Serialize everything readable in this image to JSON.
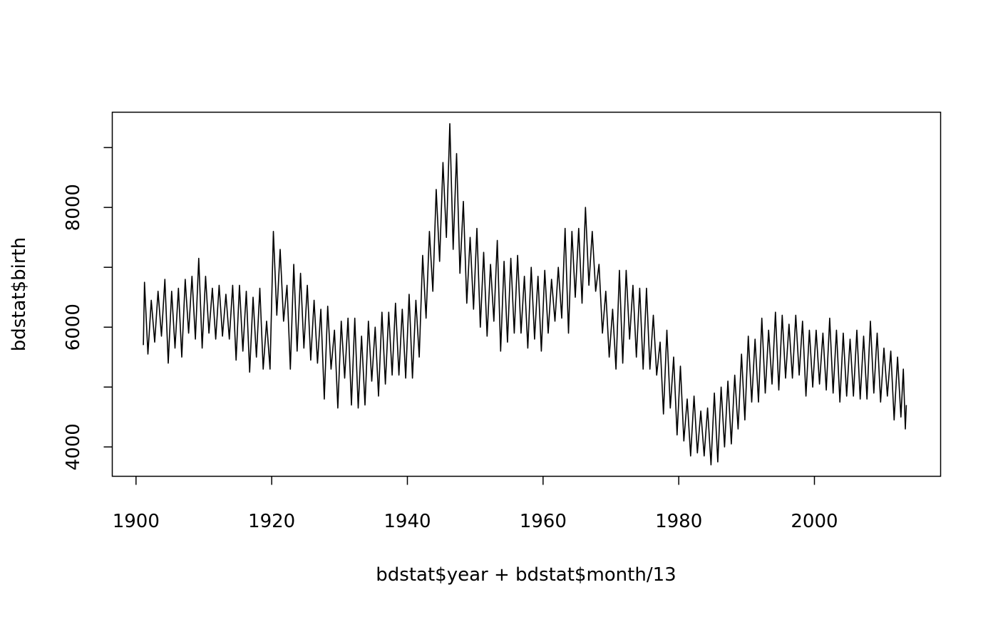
{
  "chart_data": {
    "type": "line",
    "title": "",
    "xlabel": "bdstat$year + bdstat$month/13",
    "ylabel": "bdstat$birth",
    "xlim": [
      1896.5,
      2018.6
    ],
    "ylim": [
      3510,
      9590
    ],
    "x_ticks": [
      1900,
      1920,
      1940,
      1960,
      1980,
      2000
    ],
    "x_tick_labels": [
      "1900",
      "1920",
      "1940",
      "1960",
      "1980",
      "2000"
    ],
    "y_ticks": [
      4000,
      5000,
      6000,
      7000,
      8000,
      9000
    ],
    "y_tick_labels": [
      "4000",
      "",
      "6000",
      "",
      "8000",
      ""
    ],
    "grid": false,
    "line_color": "#000000",
    "series": [
      {
        "points": [
          [
            1901.08,
            5700
          ],
          [
            1901.25,
            6750
          ],
          [
            1901.75,
            5550
          ],
          [
            1902.25,
            6450
          ],
          [
            1902.75,
            5750
          ],
          [
            1903.25,
            6600
          ],
          [
            1903.75,
            5850
          ],
          [
            1904.25,
            6800
          ],
          [
            1904.75,
            5400
          ],
          [
            1905.25,
            6600
          ],
          [
            1905.75,
            5650
          ],
          [
            1906.25,
            6650
          ],
          [
            1906.75,
            5500
          ],
          [
            1907.25,
            6800
          ],
          [
            1907.75,
            5900
          ],
          [
            1908.25,
            6850
          ],
          [
            1908.75,
            5800
          ],
          [
            1909.25,
            7150
          ],
          [
            1909.75,
            5650
          ],
          [
            1910.25,
            6850
          ],
          [
            1910.75,
            5900
          ],
          [
            1911.25,
            6650
          ],
          [
            1911.75,
            5800
          ],
          [
            1912.25,
            6700
          ],
          [
            1912.75,
            5850
          ],
          [
            1913.25,
            6550
          ],
          [
            1913.75,
            5800
          ],
          [
            1914.25,
            6700
          ],
          [
            1914.75,
            5450
          ],
          [
            1915.25,
            6700
          ],
          [
            1915.75,
            5600
          ],
          [
            1916.25,
            6600
          ],
          [
            1916.75,
            5250
          ],
          [
            1917.25,
            6500
          ],
          [
            1917.75,
            5500
          ],
          [
            1918.25,
            6650
          ],
          [
            1918.75,
            5300
          ],
          [
            1919.25,
            6100
          ],
          [
            1919.75,
            5300
          ],
          [
            1920.25,
            7600
          ],
          [
            1920.75,
            6200
          ],
          [
            1921.25,
            7300
          ],
          [
            1921.75,
            6100
          ],
          [
            1922.25,
            6700
          ],
          [
            1922.75,
            5300
          ],
          [
            1923.25,
            7050
          ],
          [
            1923.75,
            5600
          ],
          [
            1924.25,
            6900
          ],
          [
            1924.75,
            5650
          ],
          [
            1925.25,
            6700
          ],
          [
            1925.75,
            5450
          ],
          [
            1926.25,
            6450
          ],
          [
            1926.75,
            5400
          ],
          [
            1927.25,
            6300
          ],
          [
            1927.75,
            4800
          ],
          [
            1928.25,
            6350
          ],
          [
            1928.75,
            5300
          ],
          [
            1929.25,
            5950
          ],
          [
            1929.75,
            4650
          ],
          [
            1930.25,
            6100
          ],
          [
            1930.75,
            5150
          ],
          [
            1931.25,
            6150
          ],
          [
            1931.75,
            4700
          ],
          [
            1932.25,
            6150
          ],
          [
            1932.75,
            4650
          ],
          [
            1933.25,
            5850
          ],
          [
            1933.75,
            4700
          ],
          [
            1934.25,
            6100
          ],
          [
            1934.75,
            5100
          ],
          [
            1935.25,
            6000
          ],
          [
            1935.75,
            4850
          ],
          [
            1936.25,
            6250
          ],
          [
            1936.75,
            5050
          ],
          [
            1937.25,
            6250
          ],
          [
            1937.75,
            5200
          ],
          [
            1938.25,
            6400
          ],
          [
            1938.75,
            5200
          ],
          [
            1939.25,
            6300
          ],
          [
            1939.75,
            5150
          ],
          [
            1940.25,
            6550
          ],
          [
            1940.75,
            5150
          ],
          [
            1941.25,
            6450
          ],
          [
            1941.75,
            5500
          ],
          [
            1942.25,
            7200
          ],
          [
            1942.75,
            6150
          ],
          [
            1943.25,
            7600
          ],
          [
            1943.75,
            6600
          ],
          [
            1944.25,
            8300
          ],
          [
            1944.75,
            7100
          ],
          [
            1945.25,
            8750
          ],
          [
            1945.75,
            7500
          ],
          [
            1946.25,
            9400
          ],
          [
            1946.75,
            7300
          ],
          [
            1947.25,
            8900
          ],
          [
            1947.75,
            6900
          ],
          [
            1948.25,
            8100
          ],
          [
            1948.75,
            6400
          ],
          [
            1949.25,
            7500
          ],
          [
            1949.75,
            6300
          ],
          [
            1950.25,
            7650
          ],
          [
            1950.75,
            6000
          ],
          [
            1951.25,
            7250
          ],
          [
            1951.75,
            5850
          ],
          [
            1952.25,
            7050
          ],
          [
            1952.75,
            6100
          ],
          [
            1953.25,
            7450
          ],
          [
            1953.75,
            5600
          ],
          [
            1954.25,
            7100
          ],
          [
            1954.75,
            5750
          ],
          [
            1955.25,
            7150
          ],
          [
            1955.75,
            5900
          ],
          [
            1956.25,
            7200
          ],
          [
            1956.75,
            5900
          ],
          [
            1957.25,
            6850
          ],
          [
            1957.75,
            5650
          ],
          [
            1958.25,
            7000
          ],
          [
            1958.75,
            5800
          ],
          [
            1959.25,
            6850
          ],
          [
            1959.75,
            5600
          ],
          [
            1960.25,
            6950
          ],
          [
            1960.75,
            5900
          ],
          [
            1961.25,
            6800
          ],
          [
            1961.75,
            6100
          ],
          [
            1962.25,
            7000
          ],
          [
            1962.75,
            6150
          ],
          [
            1963.25,
            7650
          ],
          [
            1963.75,
            5900
          ],
          [
            1964.25,
            7600
          ],
          [
            1964.75,
            6500
          ],
          [
            1965.25,
            7650
          ],
          [
            1965.75,
            6400
          ],
          [
            1966.25,
            8000
          ],
          [
            1966.75,
            6700
          ],
          [
            1967.25,
            7600
          ],
          [
            1967.75,
            6600
          ],
          [
            1968.25,
            7050
          ],
          [
            1968.75,
            5900
          ],
          [
            1969.25,
            6600
          ],
          [
            1969.75,
            5500
          ],
          [
            1970.25,
            6300
          ],
          [
            1970.75,
            5300
          ],
          [
            1971.25,
            6950
          ],
          [
            1971.75,
            5400
          ],
          [
            1972.25,
            6950
          ],
          [
            1972.75,
            5800
          ],
          [
            1973.25,
            6700
          ],
          [
            1973.75,
            5500
          ],
          [
            1974.25,
            6650
          ],
          [
            1974.75,
            5300
          ],
          [
            1975.25,
            6650
          ],
          [
            1975.75,
            5300
          ],
          [
            1976.25,
            6200
          ],
          [
            1976.75,
            5200
          ],
          [
            1977.25,
            5750
          ],
          [
            1977.75,
            4550
          ],
          [
            1978.25,
            5950
          ],
          [
            1978.75,
            4650
          ],
          [
            1979.25,
            5500
          ],
          [
            1979.75,
            4200
          ],
          [
            1980.25,
            5350
          ],
          [
            1980.75,
            4100
          ],
          [
            1981.25,
            4800
          ],
          [
            1981.75,
            3850
          ],
          [
            1982.25,
            4850
          ],
          [
            1982.75,
            3900
          ],
          [
            1983.25,
            4600
          ],
          [
            1983.75,
            3850
          ],
          [
            1984.25,
            4650
          ],
          [
            1984.75,
            3700
          ],
          [
            1985.25,
            4900
          ],
          [
            1985.75,
            3750
          ],
          [
            1986.25,
            5000
          ],
          [
            1986.75,
            4000
          ],
          [
            1987.25,
            5100
          ],
          [
            1987.75,
            4050
          ],
          [
            1988.25,
            5200
          ],
          [
            1988.75,
            4300
          ],
          [
            1989.25,
            5550
          ],
          [
            1989.75,
            4450
          ],
          [
            1990.25,
            5850
          ],
          [
            1990.75,
            4750
          ],
          [
            1991.25,
            5800
          ],
          [
            1991.75,
            4750
          ],
          [
            1992.25,
            6150
          ],
          [
            1992.75,
            4900
          ],
          [
            1993.25,
            5950
          ],
          [
            1993.75,
            5050
          ],
          [
            1994.25,
            6250
          ],
          [
            1994.75,
            4950
          ],
          [
            1995.25,
            6200
          ],
          [
            1995.75,
            5150
          ],
          [
            1996.25,
            6050
          ],
          [
            1996.75,
            5150
          ],
          [
            1997.25,
            6200
          ],
          [
            1997.75,
            5200
          ],
          [
            1998.25,
            6100
          ],
          [
            1998.75,
            4850
          ],
          [
            1999.25,
            5950
          ],
          [
            1999.75,
            5000
          ],
          [
            2000.25,
            5950
          ],
          [
            2000.75,
            5050
          ],
          [
            2001.25,
            5900
          ],
          [
            2001.75,
            4950
          ],
          [
            2002.25,
            6150
          ],
          [
            2002.75,
            4900
          ],
          [
            2003.25,
            5950
          ],
          [
            2003.75,
            4750
          ],
          [
            2004.25,
            5900
          ],
          [
            2004.75,
            4850
          ],
          [
            2005.25,
            5800
          ],
          [
            2005.75,
            4850
          ],
          [
            2006.25,
            5950
          ],
          [
            2006.75,
            4800
          ],
          [
            2007.25,
            5850
          ],
          [
            2007.75,
            4800
          ],
          [
            2008.25,
            6100
          ],
          [
            2008.75,
            4900
          ],
          [
            2009.25,
            5900
          ],
          [
            2009.75,
            4750
          ],
          [
            2010.25,
            5650
          ],
          [
            2010.75,
            4850
          ],
          [
            2011.25,
            5600
          ],
          [
            2011.75,
            4450
          ],
          [
            2012.25,
            5500
          ],
          [
            2012.75,
            4500
          ],
          [
            2013.1,
            5300
          ],
          [
            2013.4,
            4300
          ],
          [
            2013.55,
            4700
          ]
        ]
      }
    ]
  }
}
